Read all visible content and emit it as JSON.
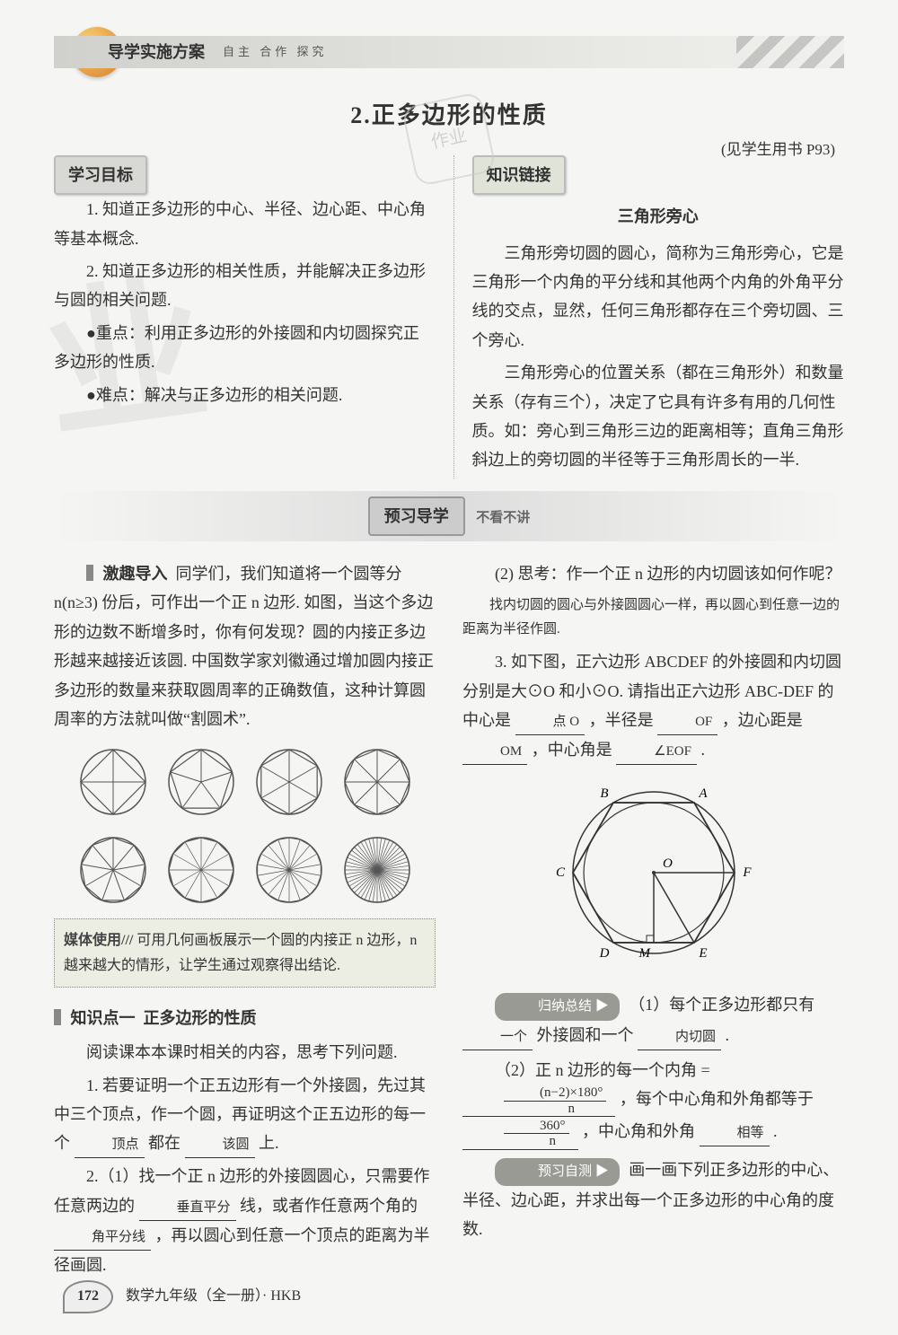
{
  "header": {
    "title": "导学实施方案",
    "subtitle": "自主  合作  探究"
  },
  "logo_face": "☺",
  "stamp_text": "作业",
  "chapter": {
    "num": "2.",
    "title": "正多边形的性质"
  },
  "page_ref": "(见学生用书 P93)",
  "goals": {
    "label": "学习目标",
    "p1": "1. 知道正多边形的中心、半径、边心距、中心角等基本概念.",
    "p2": "2. 知道正多边形的相关性质，并能解决正多边形与圆的相关问题.",
    "key": "●重点：利用正多边形的外接圆和内切圆探究正多边形的性质.",
    "hard": "●难点：解决与正多边形的相关问题."
  },
  "knowledge_link": {
    "label": "知识链接",
    "subtitle": "三角形旁心",
    "p1": "三角形旁切圆的圆心，简称为三角形旁心，它是三角形一个内角的平分线和其他两个内角的外角平分线的交点，显然，任何三角形都存在三个旁切圆、三个旁心.",
    "p2": "三角形旁心的位置关系（都在三角形外）和数量关系（存有三个），决定了它具有许多有用的几何性质。如：旁心到三角形三边的距离相等；直角三角形斜边上的旁切圆的半径等于三角形周长的一半."
  },
  "preview_band": {
    "label": "预习导学",
    "tag": "不看不讲"
  },
  "intro": {
    "lead": "激趣导入",
    "text": "同学们，我们知道将一个圆等分 n(n≥3) 份后，可作出一个正 n 边形. 如图，当这个多边形的边数不断增多时，你有何发现？圆的内接正多边形越来越接近该圆. 中国数学家刘徽通过增加圆内接正多边形的数量来获取圆周率的正确数值，这种计算圆周率的方法就叫做“割圆术”."
  },
  "polygons": {
    "r": 36,
    "rows": [
      [
        4,
        5,
        6,
        8
      ],
      [
        9,
        12,
        18,
        48
      ]
    ],
    "stroke": "#555"
  },
  "media_box": {
    "label": "媒体使用///",
    "text": "可用几何画板展示一个圆的内接正 n 边形，n 越来越大的情形，让学生通过观察得出结论."
  },
  "kp1": {
    "lead": "知识点一",
    "title": "正多边形的性质",
    "pre": "阅读课本本课时相关的内容，思考下列问题.",
    "q1a": "1. 若要证明一个正五边形有一个外接圆，先过其中三个顶点，作一个圆，再证明这个正五边形的每一个 ",
    "q1b": " 都在 ",
    "q1c": " 上.",
    "q1_ans1": "顶点",
    "q1_ans2": "该圆",
    "q2a": "2.（1）找一个正 n 边形的外接圆圆心，只需要作任意两边的 ",
    "q2b": " 线，或者作任意两个角的 ",
    "q2c": "，再以圆心到任意一个顶点的距离为半径画圆.",
    "q2_ans1": "垂直平分",
    "q2_ans2": "角平分线"
  },
  "right": {
    "q22": "(2) 思考：作一个正 n 边形的内切圆该如何作呢？",
    "q22_ans": "找内切圆的圆心与外接圆圆心一样，再以圆心到任意一边的距离为半径作圆.",
    "q3a": "3. 如下图，正六边形 ABCDEF 的外接圆和内切圆分别是大⊙O 和小⊙O. 请指出正六边形 ABC-DEF 的中心是 ",
    "q3b": "，半径是 ",
    "q3c": "，边心距是 ",
    "q3d": "，中心角是 ",
    "q3e": " .",
    "q3_ans_center": "点 O",
    "q3_ans_radius": "OF",
    "q3_ans_apothem": "OM",
    "q3_ans_angle": "∠EOF"
  },
  "hex": {
    "labels": {
      "A": "A",
      "B": "B",
      "C": "C",
      "D": "D",
      "E": "E",
      "F": "F",
      "O": "O",
      "M": "M"
    },
    "stroke": "#333"
  },
  "summary": {
    "pill1": "归纳总结 ▶",
    "s1a": "（1）每个正多边形都只有 ",
    "s1b": " 外接圆和一个 ",
    "s1c": ".",
    "s1_ans1": "一个",
    "s1_ans2": "内切圆",
    "s2a": "（2）正 n 边形的每一个内角 = ",
    "s2b": "，每个中心角和外角都等于 ",
    "s2c": "，中心角和外角 ",
    "s2d": ".",
    "s2_ans_eq": "相等",
    "frac1_top": "(n−2)×180°",
    "frac1_bot": "n",
    "frac2_top": "360°",
    "frac2_bot": "n",
    "pill2": "预习自测 ▶",
    "s3": "画一画下列正多边形的中心、半径、边心距，并求出每一个正多边形的中心角的度数."
  },
  "footer": {
    "pgno": "172",
    "book": "数学九年级（全一册）· HKB"
  },
  "big_wm": "业"
}
